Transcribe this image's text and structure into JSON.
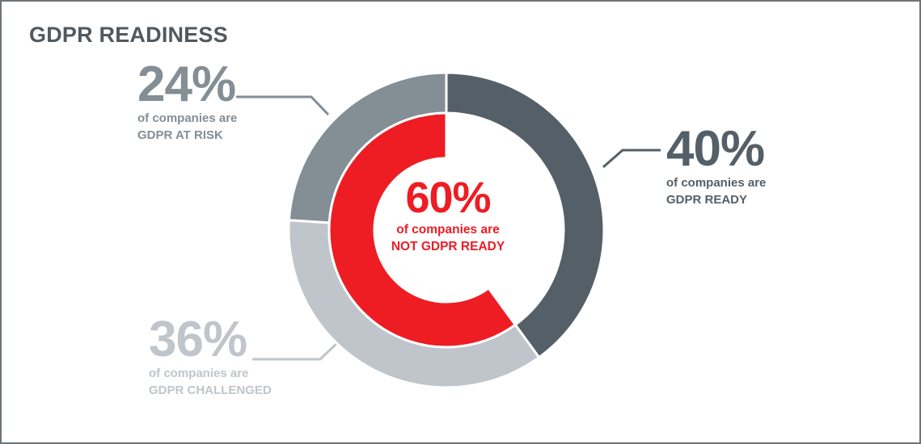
{
  "title": "GDPR READINESS",
  "chart_data": {
    "type": "pie",
    "title": "GDPR READINESS",
    "outer_ring": [
      {
        "name": "GDPR READY",
        "value": 40,
        "label": "40%",
        "caption": "of companies are",
        "color": "#545f67"
      },
      {
        "name": "GDPR CHALLENGED",
        "value": 36,
        "label": "36%",
        "caption": "of companies are",
        "color": "#bfc5ca"
      },
      {
        "name": "GDPR AT RISK",
        "value": 24,
        "label": "24%",
        "caption": "of companies are",
        "color": "#838e95"
      }
    ],
    "inner_ring": [
      {
        "name": "NOT GDPR READY",
        "value": 60,
        "label": "60%",
        "caption": "of companies are",
        "color": "#ee1d23"
      }
    ]
  },
  "callouts": {
    "risk": {
      "pct": "24%",
      "line1": "of companies are",
      "line2": "GDPR AT RISK"
    },
    "ready": {
      "pct": "40%",
      "line1": "of companies are",
      "line2": "GDPR READY"
    },
    "challenged": {
      "pct": "36%",
      "line1": "of companies are",
      "line2": "GDPR CHALLENGED"
    },
    "center": {
      "pct": "60%",
      "line1": "of companies are",
      "line2": "NOT GDPR READY"
    }
  }
}
